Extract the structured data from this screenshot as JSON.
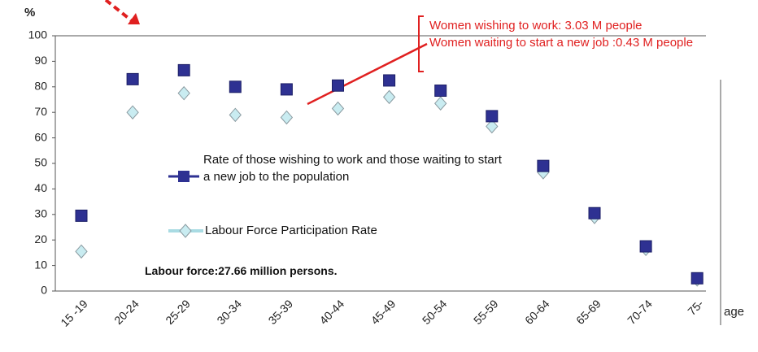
{
  "chart_data": {
    "type": "line",
    "y_label": "%",
    "x_label": "age",
    "categories": [
      "15 -19",
      "20-24",
      "25-29",
      "30-34",
      "35-39",
      "40-44",
      "45-49",
      "50-54",
      "55-59",
      "60-64",
      "65-69",
      "70-74",
      "75-"
    ],
    "series": [
      {
        "name": "Rate of those  wishing to work  and  those waiting  to  start  a  new job  to the population",
        "color": "#2e3192",
        "values": [
          29.5,
          83,
          86.5,
          80,
          79,
          80.5,
          82.5,
          78.5,
          68.5,
          49,
          30.5,
          17.5,
          5
        ]
      },
      {
        "name": "Labour  Force  Participation Rate",
        "color": "#a9dbe3",
        "values": [
          15.5,
          70,
          77.5,
          69,
          68,
          71.5,
          76,
          73.5,
          64.5,
          46.5,
          29,
          16.5,
          4.5
        ]
      }
    ],
    "ylim": [
      0,
      100
    ],
    "yticks": [
      0,
      10,
      20,
      30,
      40,
      50,
      60,
      70,
      80,
      90,
      100
    ],
    "grid": false,
    "annotations": [
      "Labour force:27.66 million persons.",
      "Women wishing  to work: 3.03 M people",
      "Women  waiting  to  start  a new  job :0.43 M people"
    ]
  }
}
